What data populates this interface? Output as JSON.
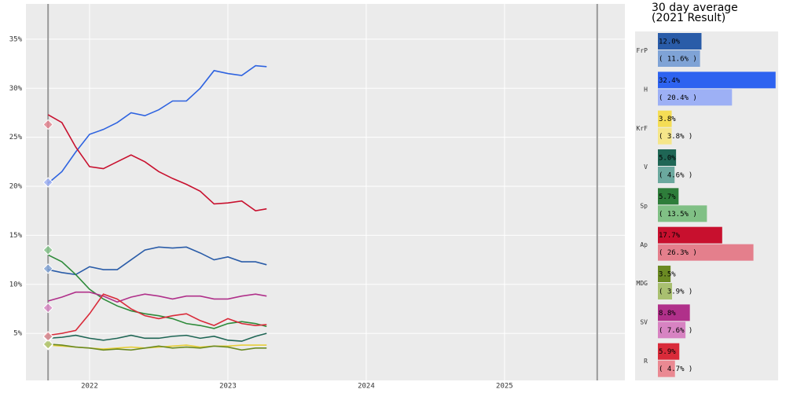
{
  "chart_data": [
    {
      "type": "line",
      "x": [
        2021.7,
        2021.8,
        2021.9,
        2022.0,
        2022.1,
        2022.2,
        2022.3,
        2022.4,
        2022.5,
        2022.6,
        2022.7,
        2022.8,
        2022.9,
        2023.0,
        2023.1,
        2023.2,
        2023.28
      ],
      "series": [
        {
          "color": "#2a5ca8",
          "values": [
            11.5,
            11.2,
            11,
            11.8,
            11.5,
            11.5,
            12.5,
            13.5,
            13.8,
            13.7,
            13.8,
            13.2,
            12.5,
            12.8,
            12.3,
            12.3,
            12.0
          ]
        },
        {
          "color": "#2e63e0",
          "values": [
            20.3,
            21.5,
            23.5,
            25.3,
            25.8,
            26.5,
            27.5,
            27.2,
            27.8,
            28.7,
            28.7,
            30,
            31.8,
            31.5,
            31.3,
            32.3,
            32.2
          ]
        },
        {
          "color": "#e8cf3a",
          "values": [
            3.8,
            3.7,
            3.6,
            3.5,
            3.4,
            3.5,
            3.6,
            3.5,
            3.6,
            3.7,
            3.8,
            3.6,
            3.7,
            3.7,
            3.8,
            3.8,
            3.8
          ]
        },
        {
          "color": "#1f6655",
          "values": [
            4.5,
            4.6,
            4.8,
            4.5,
            4.3,
            4.5,
            4.8,
            4.5,
            4.5,
            4.7,
            4.8,
            4.5,
            4.7,
            4.3,
            4.2,
            4.7,
            5.0
          ]
        },
        {
          "color": "#2e8a3a",
          "values": [
            13,
            12.3,
            11,
            9.5,
            8.5,
            7.8,
            7.3,
            7,
            6.8,
            6.5,
            6,
            5.8,
            5.5,
            6,
            6.2,
            6,
            5.7
          ]
        },
        {
          "color": "#c8102e",
          "values": [
            27.3,
            26.5,
            24,
            22,
            21.8,
            22.5,
            23.2,
            22.5,
            21.5,
            20.8,
            20.2,
            19.5,
            18.2,
            18.3,
            18.5,
            17.5,
            17.7
          ]
        },
        {
          "color": "#6b8a23",
          "values": [
            3.9,
            3.8,
            3.6,
            3.5,
            3.3,
            3.4,
            3.3,
            3.5,
            3.7,
            3.5,
            3.6,
            3.5,
            3.7,
            3.6,
            3.3,
            3.5,
            3.5
          ]
        },
        {
          "color": "#b0308a",
          "values": [
            8.3,
            8.7,
            9.2,
            9.2,
            8.8,
            8.2,
            8.7,
            9,
            8.8,
            8.5,
            8.8,
            8.8,
            8.5,
            8.5,
            8.8,
            9,
            8.8
          ]
        },
        {
          "color": "#d92b3a",
          "values": [
            4.8,
            5,
            5.3,
            7,
            9,
            8.5,
            7.5,
            6.8,
            6.5,
            6.8,
            7,
            6.3,
            5.8,
            6.5,
            6,
            5.8,
            5.9
          ]
        }
      ],
      "xlim": [
        2021.54,
        2025.87
      ],
      "xticks": [
        2022,
        2023,
        2024,
        2025
      ],
      "ylim": [
        0.2,
        38.6
      ],
      "yticks": [
        {
          "value": 5,
          "label": "5%"
        },
        {
          "value": 10,
          "label": "10%"
        },
        {
          "value": 15,
          "label": "15%"
        },
        {
          "value": 20,
          "label": "20%"
        },
        {
          "value": 25,
          "label": "25%"
        },
        {
          "value": 30,
          "label": "30%"
        },
        {
          "value": 35,
          "label": "35%"
        }
      ],
      "vlines": [
        2021.7,
        2025.67
      ],
      "grid": true
    },
    {
      "type": "bar",
      "orientation": "horizontal",
      "title": "30 day average",
      "subtitle": "(2021 Result)",
      "categories": [
        "FrP",
        "H",
        "KrF",
        "V",
        "Sp",
        "Ap",
        "MDG",
        "SV",
        "R"
      ],
      "series": [
        {
          "colors": [
            "#2a5ca8",
            "#2e63f0",
            "#f5dd55",
            "#1f6655",
            "#2e7d3a",
            "#c8102e",
            "#6b8a23",
            "#b0308a",
            "#d92b3a"
          ],
          "values": [
            12.0,
            32.4,
            3.8,
            5.0,
            5.7,
            17.7,
            3.5,
            8.8,
            5.9
          ],
          "value_labels": [
            "12.0%",
            "32.4%",
            "3.8%",
            "5.0%",
            "5.7%",
            "17.7%",
            "3.5%",
            "8.8%",
            "5.9%"
          ]
        },
        {
          "colors": [
            "#7fa3d6",
            "#9db0f5",
            "#f5e68a",
            "#6ba89e",
            "#80c085",
            "#e47f8c",
            "#a9c070",
            "#d783c2",
            "#ea8992"
          ],
          "values": [
            11.6,
            20.4,
            3.8,
            4.6,
            13.5,
            26.3,
            3.9,
            7.6,
            4.7
          ],
          "value_labels": [
            "( 11.6% )",
            "( 20.4% )",
            "( 3.8% )",
            "( 4.6% )",
            "( 13.5% )",
            "( 26.3% )",
            "( 3.9% )",
            "( 7.6% )",
            "( 4.7% )"
          ]
        }
      ],
      "xlim": [
        0,
        33.1
      ]
    }
  ]
}
